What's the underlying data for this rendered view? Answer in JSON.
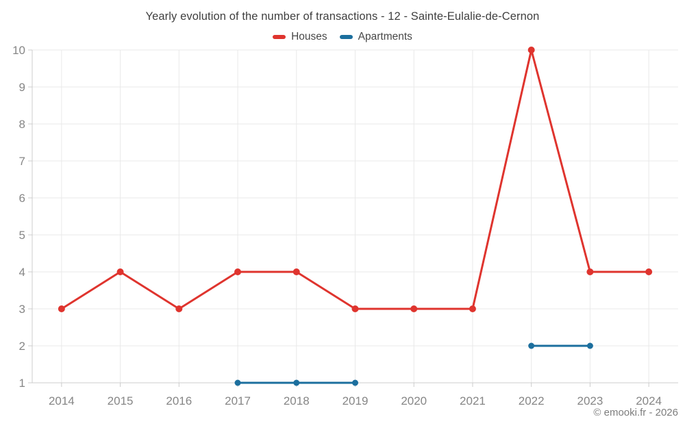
{
  "chart_data": {
    "type": "line",
    "title": "Yearly evolution of the number of transactions - 12 - Sainte-Eulalie-de-Cernon",
    "categories": [
      "2014",
      "2015",
      "2016",
      "2017",
      "2018",
      "2019",
      "2020",
      "2021",
      "2022",
      "2023",
      "2024"
    ],
    "series": [
      {
        "name": "Houses",
        "color": "#df342e",
        "values": [
          3,
          4,
          3,
          4,
          4,
          3,
          3,
          3,
          10,
          4,
          4
        ]
      },
      {
        "name": "Apartments",
        "color": "#1c6f9e",
        "values": [
          null,
          null,
          null,
          1,
          1,
          1,
          null,
          null,
          2,
          2,
          null
        ]
      }
    ],
    "ylim": [
      1,
      10
    ],
    "yticks": [
      1,
      2,
      3,
      4,
      5,
      6,
      7,
      8,
      9,
      10
    ],
    "grid": true,
    "legend_position": "top",
    "marker": "circle",
    "colors": {
      "grid_line": "#e9e9e9",
      "axis_line": "#cccccc",
      "tick_mark": "#cccccc",
      "axis_label": "#868686",
      "title_text": "#3f3f3f",
      "legend_text": "#474747"
    }
  },
  "footer": {
    "credit": "© emooki.fr - 2026"
  }
}
